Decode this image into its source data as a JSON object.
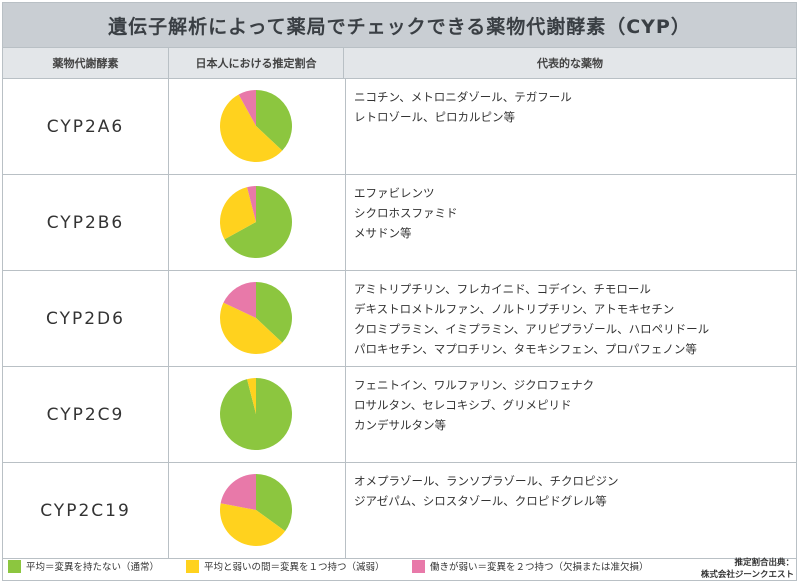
{
  "title": "遺伝子解析によって薬局でチェックできる薬物代謝酵素（CYP）",
  "headers": {
    "enzyme": "薬物代謝酵素",
    "ratio": "日本人における推定割合",
    "drugs": "代表的な薬物"
  },
  "colors": {
    "normal": "#8cc63f",
    "intermediate": "#ffd21e",
    "poor": "#e879a9"
  },
  "rows": [
    {
      "enzyme": "CYP2A6",
      "drugs": [
        "ニコチン、メトロニダゾール、テガフール",
        "レトロゾール、ピロカルピン等"
      ]
    },
    {
      "enzyme": "CYP2B6",
      "drugs": [
        "エファビレンツ",
        "シクロホスファミド",
        "メサドン等"
      ]
    },
    {
      "enzyme": "CYP2D6",
      "drugs": [
        "アミトリプチリン、フレカイニド、コデイン、チモロール",
        "デキストロメトルファン、ノルトリプチリン、アトモキセチン",
        "クロミプラミン、イミプラミン、アリピプラゾール、ハロペリドール",
        "パロキセチン、マプロチリン、タモキシフェン、プロパフェノン等"
      ]
    },
    {
      "enzyme": "CYP2C9",
      "drugs": [
        "フェニトイン、ワルファリン、ジクロフェナク",
        "ロサルタン、セレコキシブ、グリメピリド",
        "カンデサルタン等"
      ]
    },
    {
      "enzyme": "CYP2C19",
      "drugs": [
        "オメプラゾール、ランソプラゾール、チクロピジン",
        "ジアゼパム、シロスタゾール、クロピドグレル等"
      ]
    }
  ],
  "legend": {
    "normal": "平均＝変異を持たない（通常）",
    "intermediate": "平均と弱いの間＝変異を１つ持つ（減弱）",
    "poor": "働きが弱い＝変異を２つ持つ（欠損または准欠損）"
  },
  "source": {
    "line1": "推定割合出典：",
    "line2": "株式会社ジーンクエスト"
  },
  "chart_data": {
    "type": "pie",
    "categories": [
      "平均＝変異を持たない（通常）",
      "平均と弱いの間＝変異を１つ持つ（減弱）",
      "働きが弱い＝変異を２つ持つ（欠損または准欠損）"
    ],
    "series": [
      {
        "name": "CYP2A6",
        "values": [
          0.37,
          0.55,
          0.08
        ]
      },
      {
        "name": "CYP2B6",
        "values": [
          0.67,
          0.29,
          0.04
        ]
      },
      {
        "name": "CYP2D6",
        "values": [
          0.37,
          0.45,
          0.18
        ]
      },
      {
        "name": "CYP2C9",
        "values": [
          0.96,
          0.04,
          0.0
        ]
      },
      {
        "name": "CYP2C19",
        "values": [
          0.35,
          0.43,
          0.22
        ]
      }
    ]
  }
}
